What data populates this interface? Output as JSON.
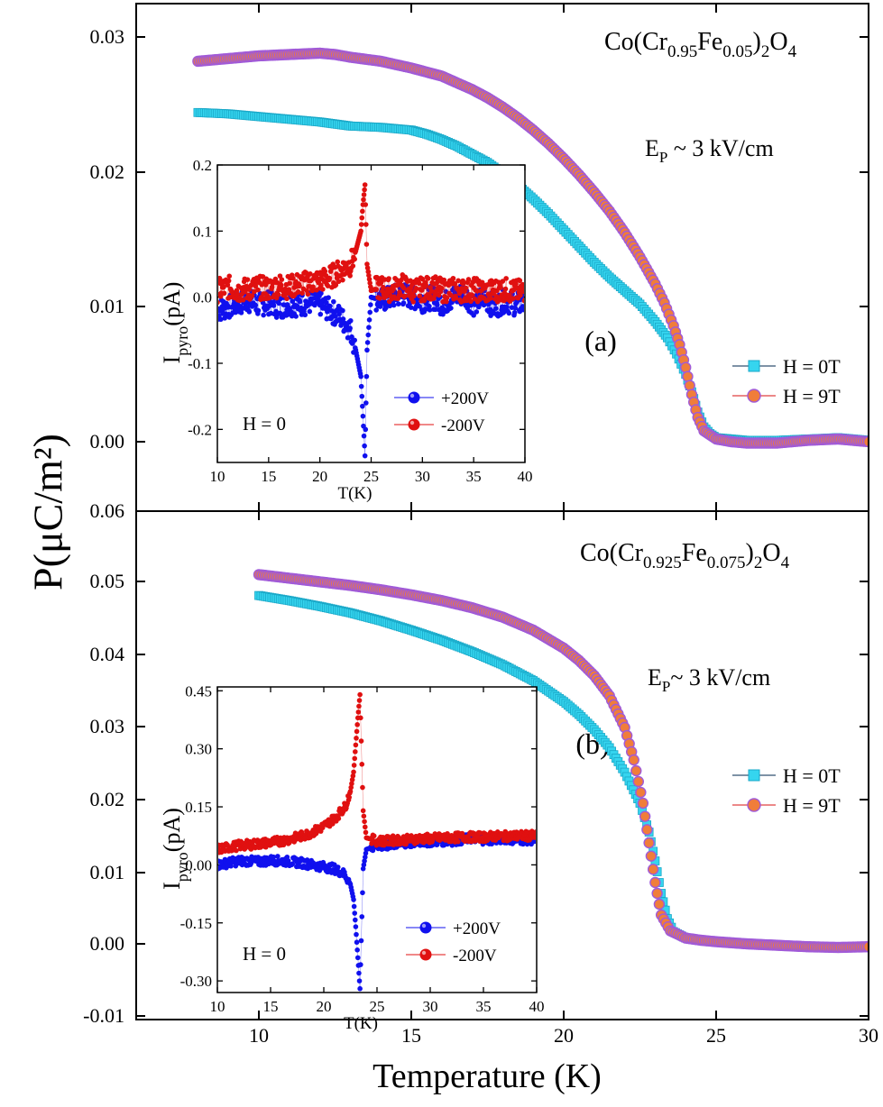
{
  "figure": {
    "ylabel": "P(μC/m²)",
    "xlabel": "Temperature (K)"
  },
  "chart_data": [
    {
      "type": "scatter",
      "panel": "a",
      "panel_label": "(a)",
      "composition": "Co(Cr0.95Fe0.05)2O4",
      "field_label": "EP ~ 3 kV/cm",
      "x_ticks": [
        "10",
        "15",
        "20",
        "25",
        "30"
      ],
      "y_ticks": [
        "0.00",
        "0.01",
        "0.02",
        "0.03"
      ],
      "xlim": [
        6,
        30
      ],
      "ylim": [
        -0.005,
        0.0325
      ],
      "series": [
        {
          "name": "H = 0T",
          "color": "#35d5ef",
          "marker": "square",
          "x": [
            8.0,
            9.0,
            10.0,
            11.0,
            12.0,
            13.0,
            14.0,
            15.0,
            15.5,
            16.0,
            16.5,
            17.0,
            17.5,
            18.0,
            18.5,
            19.0,
            19.5,
            20.0,
            20.5,
            21.0,
            21.5,
            22.0,
            22.5,
            23.0,
            23.4,
            23.7,
            24.0,
            24.2,
            24.4,
            24.6,
            24.8,
            25.0,
            25.5,
            26.0,
            27.0,
            28.0,
            29.0,
            30.0
          ],
          "y": [
            0.0244,
            0.0243,
            0.0241,
            0.0239,
            0.0237,
            0.0234,
            0.0233,
            0.0231,
            0.0228,
            0.0224,
            0.0219,
            0.0213,
            0.0207,
            0.0199,
            0.019,
            0.018,
            0.0169,
            0.0157,
            0.0145,
            0.0133,
            0.0122,
            0.0112,
            0.0102,
            0.0089,
            0.0077,
            0.0065,
            0.005,
            0.0037,
            0.0022,
            0.0011,
            0.0006,
            0.0003,
            0.0002,
            0.0001,
            0.0001,
            0.0002,
            0.0003,
            0.0001
          ]
        },
        {
          "name": "H = 9T",
          "color": "#f07d3a",
          "marker": "circle",
          "x": [
            8.0,
            9.0,
            10.0,
            11.0,
            12.0,
            12.5,
            13.0,
            14.0,
            15.0,
            16.0,
            16.5,
            17.0,
            17.5,
            18.0,
            18.5,
            19.0,
            19.5,
            20.0,
            20.5,
            21.0,
            21.5,
            22.0,
            22.5,
            23.0,
            23.3,
            23.6,
            23.8,
            24.0,
            24.2,
            24.4,
            24.6,
            25.0,
            25.5,
            26.0,
            27.0,
            28.0,
            29.0,
            30.0
          ],
          "y": [
            0.0282,
            0.0284,
            0.0286,
            0.0287,
            0.0288,
            0.0287,
            0.0285,
            0.0282,
            0.0277,
            0.0271,
            0.0266,
            0.0261,
            0.0255,
            0.0248,
            0.024,
            0.0231,
            0.0221,
            0.021,
            0.0198,
            0.0185,
            0.0171,
            0.0155,
            0.0137,
            0.0117,
            0.0103,
            0.0086,
            0.0072,
            0.0055,
            0.0035,
            0.0018,
            0.0008,
            0.0002,
            0.0,
            -0.0001,
            -0.0001,
            0.0001,
            0.0002,
            0.0
          ]
        }
      ],
      "inset": {
        "xlabel": "T(K)",
        "ylabel": "Ipyro(pA)",
        "ylabel_main": "I",
        "ylabel_sub": "pyro",
        "ylabel_unit": "(pA)",
        "field_note": "H = 0",
        "x_ticks": [
          "10",
          "15",
          "20",
          "25",
          "30",
          "35",
          "40"
        ],
        "y_ticks": [
          "-0.2",
          "-0.1",
          "0.0",
          "0.1",
          "0.2"
        ],
        "xlim": [
          10,
          40
        ],
        "ylim": [
          -0.25,
          0.2
        ],
        "series": [
          {
            "name": "+200V",
            "color": "#1010ee",
            "x": [
              10,
              11,
              12,
              13,
              14,
              15,
              16,
              17,
              18,
              19,
              20,
              21,
              22,
              23,
              23.5,
              24,
              24.2,
              24.4,
              24.6,
              25,
              26,
              27,
              28,
              29,
              30,
              31,
              32,
              33,
              34,
              35,
              36,
              37,
              38,
              39,
              40
            ],
            "y": [
              -0.02,
              -0.015,
              -0.01,
              -0.005,
              -0.012,
              -0.008,
              -0.015,
              -0.01,
              -0.012,
              -0.008,
              -0.01,
              -0.02,
              -0.03,
              -0.05,
              -0.08,
              -0.12,
              -0.18,
              -0.24,
              -0.08,
              0.0,
              -0.005,
              0.0,
              0.005,
              0.0,
              -0.005,
              0.0,
              -0.01,
              0.0,
              0.005,
              -0.01,
              0.0,
              -0.015,
              -0.005,
              -0.01,
              -0.01
            ]
          },
          {
            "name": "-200V",
            "color": "#e01010",
            "x": [
              10,
              11,
              12,
              13,
              14,
              15,
              16,
              17,
              18,
              19,
              20,
              21,
              22,
              23,
              23.5,
              24,
              24.2,
              24.4,
              24.6,
              25,
              26,
              27,
              28,
              29,
              30,
              31,
              32,
              33,
              34,
              35,
              36,
              37,
              38,
              39,
              40
            ],
            "y": [
              0.01,
              0.015,
              0.01,
              0.012,
              0.015,
              0.012,
              0.018,
              0.015,
              0.02,
              0.022,
              0.025,
              0.03,
              0.04,
              0.05,
              0.07,
              0.1,
              0.14,
              0.17,
              0.05,
              0.01,
              0.015,
              0.01,
              0.018,
              0.01,
              0.012,
              0.015,
              0.01,
              0.012,
              0.01,
              0.012,
              0.008,
              0.01,
              0.012,
              0.008,
              0.01
            ]
          }
        ]
      }
    },
    {
      "type": "scatter",
      "panel": "b",
      "panel_label": "(b)",
      "composition": "Co(Cr0.925Fe0.075)2O4",
      "field_label": "EP~ 3 kV/cm",
      "x_ticks": [
        "10",
        "15",
        "20",
        "25",
        "30"
      ],
      "y_ticks": [
        "-0.01",
        "0.00",
        "0.01",
        "0.02",
        "0.03",
        "0.04",
        "0.05",
        "0.06"
      ],
      "xlim": [
        6,
        30
      ],
      "ylim": [
        -0.01,
        0.06
      ],
      "series": [
        {
          "name": "H = 0T",
          "color": "#35d5ef",
          "marker": "square",
          "x": [
            10.0,
            11.0,
            12.0,
            13.0,
            14.0,
            15.0,
            16.0,
            17.0,
            18.0,
            19.0,
            20.0,
            20.5,
            21.0,
            21.5,
            22.0,
            22.5,
            22.8,
            23.0,
            23.2,
            23.4,
            23.6,
            24.0,
            24.5,
            25.0,
            26.0,
            27.0,
            28.0,
            29.0,
            30.0
          ],
          "y": [
            0.0483,
            0.0476,
            0.0468,
            0.0459,
            0.0448,
            0.0435,
            0.0421,
            0.0405,
            0.0387,
            0.0365,
            0.0336,
            0.0318,
            0.0297,
            0.0272,
            0.0238,
            0.0195,
            0.0155,
            0.0115,
            0.007,
            0.0035,
            0.0017,
            0.0008,
            0.0005,
            0.0003,
            0.0001,
            -0.0001,
            -0.0003,
            -0.0004,
            -0.0004
          ]
        },
        {
          "name": "H = 9T",
          "color": "#f07d3a",
          "marker": "circle",
          "x": [
            10.0,
            11.0,
            12.0,
            13.0,
            14.0,
            15.0,
            16.0,
            17.0,
            18.0,
            19.0,
            20.0,
            20.5,
            21.0,
            21.5,
            22.0,
            22.3,
            22.6,
            22.8,
            23.0,
            23.2,
            23.5,
            24.0,
            24.5,
            25.0,
            26.0,
            27.0,
            28.0,
            29.0,
            30.0
          ],
          "y": [
            0.0512,
            0.0507,
            0.0502,
            0.0497,
            0.0491,
            0.0484,
            0.0476,
            0.0466,
            0.0453,
            0.0435,
            0.041,
            0.0393,
            0.0372,
            0.0344,
            0.03,
            0.0255,
            0.0195,
            0.014,
            0.0085,
            0.004,
            0.0018,
            0.0008,
            0.0005,
            0.0003,
            0.0,
            -0.0002,
            -0.0004,
            -0.0005,
            -0.0004
          ]
        }
      ],
      "inset": {
        "xlabel": "T(K)",
        "ylabel": "Ipyro(pA)",
        "ylabel_main": "I",
        "ylabel_sub": "pyro",
        "ylabel_unit": "(pA)",
        "field_note": "H = 0",
        "x_ticks": [
          "10",
          "15",
          "20",
          "25",
          "30",
          "35",
          "40"
        ],
        "y_ticks": [
          "-0.30",
          "-0.15",
          "0.00",
          "0.15",
          "0.30",
          "0.45"
        ],
        "xlim": [
          10,
          40
        ],
        "ylim": [
          -0.33,
          0.46
        ],
        "series": [
          {
            "name": "+200V",
            "color": "#1010ee",
            "x": [
              10,
              11,
              12,
              13,
              14,
              15,
              16,
              17,
              18,
              19,
              20,
              21,
              22,
              22.5,
              22.8,
              23.0,
              23.2,
              23.4,
              23.7,
              24,
              25,
              26,
              27,
              28,
              29,
              30,
              31,
              32,
              33,
              34,
              35,
              36,
              37,
              38,
              39,
              40
            ],
            "y": [
              0.0,
              0.005,
              0.01,
              0.01,
              0.008,
              0.012,
              0.01,
              0.008,
              0.005,
              0.0,
              -0.005,
              -0.01,
              -0.025,
              -0.05,
              -0.09,
              -0.16,
              -0.24,
              -0.32,
              -0.01,
              0.04,
              0.05,
              0.05,
              0.055,
              0.055,
              0.06,
              0.06,
              0.062,
              0.062,
              0.065,
              0.07,
              0.065,
              0.065,
              0.068,
              0.065,
              0.065,
              0.065
            ]
          },
          {
            "name": "-200V",
            "color": "#e01010",
            "x": [
              10,
              11,
              12,
              13,
              14,
              15,
              16,
              17,
              18,
              19,
              20,
              21,
              22,
              22.5,
              22.8,
              23.0,
              23.2,
              23.4,
              23.7,
              24,
              25,
              26,
              27,
              28,
              29,
              30,
              31,
              32,
              33,
              34,
              35,
              36,
              37,
              38,
              39,
              40
            ],
            "y": [
              0.04,
              0.045,
              0.05,
              0.052,
              0.055,
              0.058,
              0.062,
              0.068,
              0.075,
              0.085,
              0.1,
              0.12,
              0.15,
              0.19,
              0.24,
              0.31,
              0.38,
              0.44,
              0.14,
              0.07,
              0.062,
              0.062,
              0.065,
              0.065,
              0.068,
              0.068,
              0.07,
              0.07,
              0.072,
              0.072,
              0.072,
              0.074,
              0.074,
              0.075,
              0.075,
              0.075
            ]
          }
        ]
      }
    }
  ]
}
